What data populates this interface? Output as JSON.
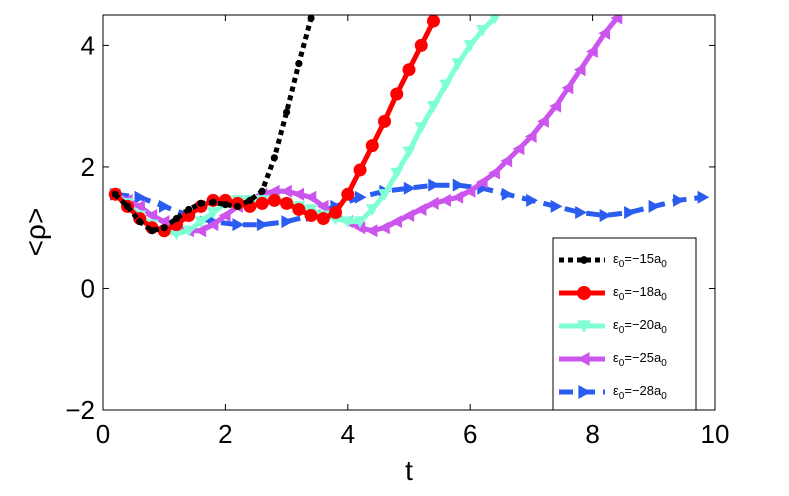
{
  "chart_data": {
    "type": "line",
    "title": "",
    "xlabel": "t",
    "ylabel": "<ρ>",
    "xlim": [
      0,
      10
    ],
    "ylim": [
      -2,
      4.5
    ],
    "xticks": [
      0,
      2,
      4,
      6,
      8,
      10
    ],
    "yticks": [
      -2,
      0,
      2,
      4
    ],
    "xtick_labels": [
      "0",
      "2",
      "4",
      "6",
      "8",
      "10"
    ],
    "ytick_labels": [
      "−2",
      "0",
      "2",
      "4"
    ],
    "grid": false,
    "legend_position": "bottom-right",
    "series": [
      {
        "name": "ε0=−15a0",
        "label_main": "ε",
        "label_sub1": "0",
        "label_mid": "=−15a",
        "label_sub2": "0",
        "color": "#000000",
        "line_style": "dotted-thick",
        "marker": "dot",
        "x": [
          0.2,
          0.4,
          0.6,
          0.8,
          1.0,
          1.2,
          1.4,
          1.6,
          1.8,
          2.0,
          2.2,
          2.4,
          2.6,
          2.8,
          3.0,
          3.2,
          3.4
        ],
        "y": [
          1.55,
          1.35,
          1.1,
          0.95,
          1.0,
          1.15,
          1.3,
          1.4,
          1.42,
          1.38,
          1.35,
          1.45,
          1.6,
          2.15,
          2.9,
          3.7,
          4.45
        ]
      },
      {
        "name": "ε0=−18a0",
        "label_main": "ε",
        "label_sub1": "0",
        "label_mid": "=−18a",
        "label_sub2": "0",
        "color": "#ff0000",
        "line_style": "solid",
        "marker": "circle",
        "x": [
          0.2,
          0.4,
          0.6,
          0.8,
          1.0,
          1.2,
          1.4,
          1.6,
          1.8,
          2.0,
          2.2,
          2.4,
          2.6,
          2.8,
          3.0,
          3.2,
          3.4,
          3.6,
          3.8,
          4.0,
          4.2,
          4.4,
          4.6,
          4.8,
          5.0,
          5.2,
          5.4
        ],
        "y": [
          1.55,
          1.35,
          1.15,
          1.0,
          0.95,
          1.05,
          1.2,
          1.35,
          1.45,
          1.45,
          1.4,
          1.35,
          1.4,
          1.45,
          1.4,
          1.3,
          1.2,
          1.15,
          1.25,
          1.55,
          1.95,
          2.35,
          2.75,
          3.2,
          3.6,
          4.0,
          4.4
        ]
      },
      {
        "name": "ε0=−20a0",
        "label_main": "ε",
        "label_sub1": "0",
        "label_mid": "=−20a",
        "label_sub2": "0",
        "color": "#7fffd4",
        "line_style": "solid",
        "marker": "triangle-down",
        "x": [
          0.2,
          0.4,
          0.6,
          0.8,
          1.0,
          1.2,
          1.4,
          1.6,
          1.8,
          2.0,
          2.2,
          2.4,
          2.6,
          2.8,
          3.0,
          3.2,
          3.4,
          3.6,
          3.8,
          4.0,
          4.2,
          4.4,
          4.6,
          4.8,
          5.0,
          5.2,
          5.4,
          5.6,
          5.8,
          6.0,
          6.2,
          6.4
        ],
        "y": [
          1.55,
          1.4,
          1.2,
          1.05,
          0.95,
          0.9,
          0.95,
          1.1,
          1.25,
          1.4,
          1.45,
          1.45,
          1.45,
          1.45,
          1.4,
          1.35,
          1.3,
          1.2,
          1.15,
          1.1,
          1.1,
          1.3,
          1.55,
          1.9,
          2.25,
          2.65,
          3.0,
          3.35,
          3.7,
          4.0,
          4.25,
          4.45
        ]
      },
      {
        "name": "ε0=−25a0",
        "label_main": "ε",
        "label_sub1": "0",
        "label_mid": "=−25a",
        "label_sub2": "0",
        "color": "#cc55ee",
        "line_style": "solid",
        "marker": "triangle-left",
        "x": [
          0.2,
          0.4,
          0.6,
          0.8,
          1.0,
          1.2,
          1.4,
          1.6,
          1.8,
          2.0,
          2.2,
          2.4,
          2.6,
          2.8,
          3.0,
          3.2,
          3.4,
          3.6,
          3.8,
          4.0,
          4.2,
          4.4,
          4.6,
          4.8,
          5.0,
          5.2,
          5.4,
          5.6,
          5.8,
          6.0,
          6.2,
          6.4,
          6.6,
          6.8,
          7.0,
          7.2,
          7.4,
          7.6,
          7.8,
          8.0,
          8.2,
          8.4
        ],
        "y": [
          1.55,
          1.45,
          1.35,
          1.2,
          1.1,
          1.0,
          0.95,
          0.95,
          1.05,
          1.2,
          1.35,
          1.45,
          1.55,
          1.6,
          1.6,
          1.55,
          1.5,
          1.35,
          1.2,
          1.1,
          1.0,
          0.95,
          1.0,
          1.1,
          1.2,
          1.3,
          1.4,
          1.45,
          1.5,
          1.6,
          1.75,
          1.9,
          2.1,
          2.3,
          2.5,
          2.75,
          3.0,
          3.3,
          3.6,
          3.9,
          4.2,
          4.45
        ]
      },
      {
        "name": "ε0=−28a0",
        "label_main": "ε",
        "label_sub1": "0",
        "label_mid": "=−28a",
        "label_sub2": "0",
        "color": "#2a5cf0",
        "line_style": "dashed",
        "marker": "triangle-right",
        "x": [
          0.2,
          0.6,
          1.0,
          1.4,
          1.8,
          2.2,
          2.6,
          3.0,
          3.4,
          3.8,
          4.2,
          4.6,
          5.0,
          5.4,
          5.8,
          6.2,
          6.6,
          7.0,
          7.4,
          7.8,
          8.2,
          8.6,
          9.0,
          9.4,
          9.8
        ],
        "y": [
          1.55,
          1.5,
          1.35,
          1.2,
          1.1,
          1.05,
          1.05,
          1.1,
          1.2,
          1.35,
          1.5,
          1.6,
          1.65,
          1.7,
          1.7,
          1.65,
          1.55,
          1.45,
          1.35,
          1.25,
          1.2,
          1.25,
          1.35,
          1.45,
          1.5
        ]
      }
    ]
  }
}
